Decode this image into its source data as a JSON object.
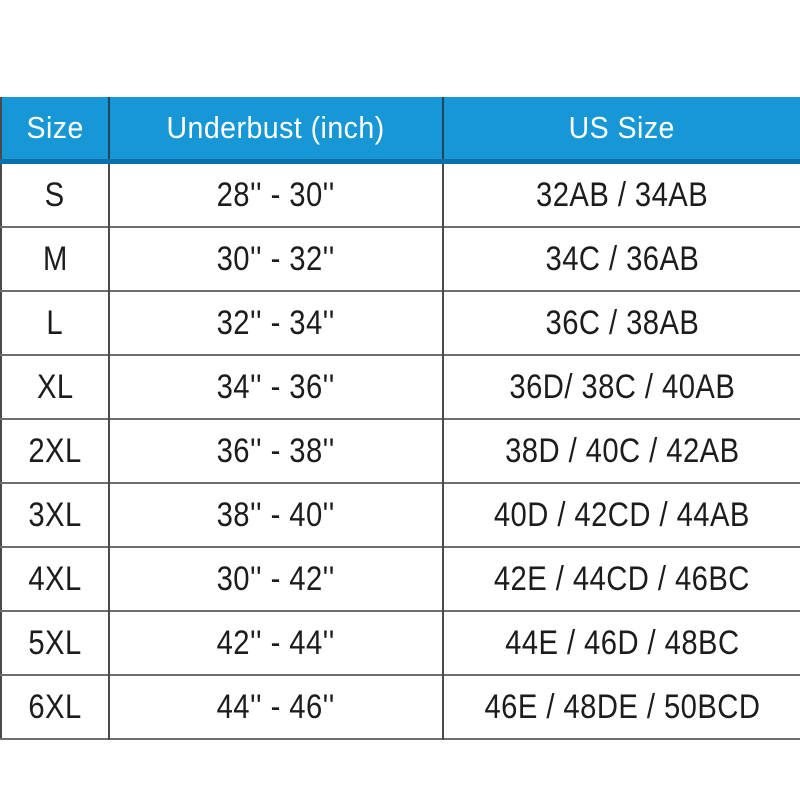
{
  "colors": {
    "header_background": "#1797d5",
    "header_bottom_border": "#0d6fa9",
    "header_text": "#ffffff",
    "cell_text": "#1c1c1c",
    "grid_horizontal": "#6e6e6e",
    "grid_vertical": "#4a4a4a",
    "page_background": "#ffffff"
  },
  "chart_data": {
    "type": "table",
    "headers": [
      "Size",
      "Underbust (inch)",
      "US Size"
    ],
    "rows": [
      [
        "S",
        "28'' - 30''",
        "32AB / 34AB"
      ],
      [
        "M",
        "30'' - 32''",
        "34C / 36AB"
      ],
      [
        "L",
        "32'' - 34''",
        "36C / 38AB"
      ],
      [
        "XL",
        "34'' - 36''",
        "36D/ 38C / 40AB"
      ],
      [
        "2XL",
        "36'' - 38''",
        "38D / 40C / 42AB"
      ],
      [
        "3XL",
        "38'' - 40''",
        "40D / 42CD / 44AB"
      ],
      [
        "4XL",
        "30'' - 42''",
        "42E / 44CD / 46BC"
      ],
      [
        "5XL",
        "42'' - 44''",
        "44E / 46D / 48BC"
      ],
      [
        "6XL",
        "44'' - 46''",
        "46E / 48DE / 50BCD"
      ]
    ]
  }
}
